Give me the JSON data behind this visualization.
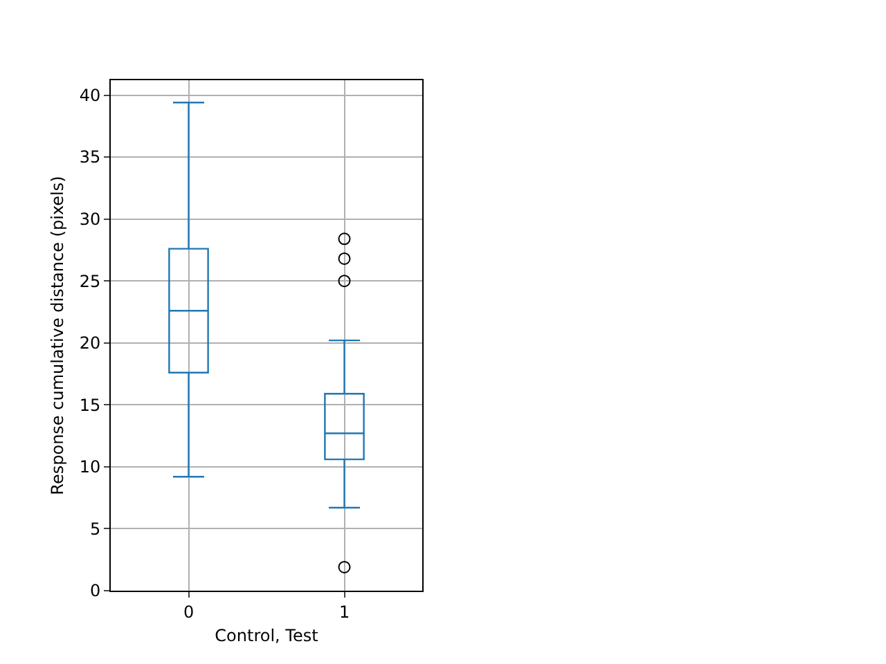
{
  "chart_data": {
    "type": "box",
    "xlabel": "Control, Test",
    "ylabel": "Response cumulative distance (pixels)",
    "categories": [
      "0",
      "1"
    ],
    "color": "#1f77b4",
    "boxes": [
      {
        "low": 9.2,
        "q1": 17.6,
        "median": 22.6,
        "q3": 27.6,
        "high": 39.4
      },
      {
        "low": 6.7,
        "q1": 10.6,
        "median": 12.7,
        "q3": 15.9,
        "high": 20.2,
        "outliers": [
          28.4,
          26.8,
          25.0,
          1.9
        ]
      }
    ],
    "ylim": [
      0,
      41.2
    ],
    "yticks": [
      0,
      5,
      10,
      15,
      20,
      25,
      30,
      35,
      40
    ],
    "grid": true,
    "marker": "circle"
  }
}
